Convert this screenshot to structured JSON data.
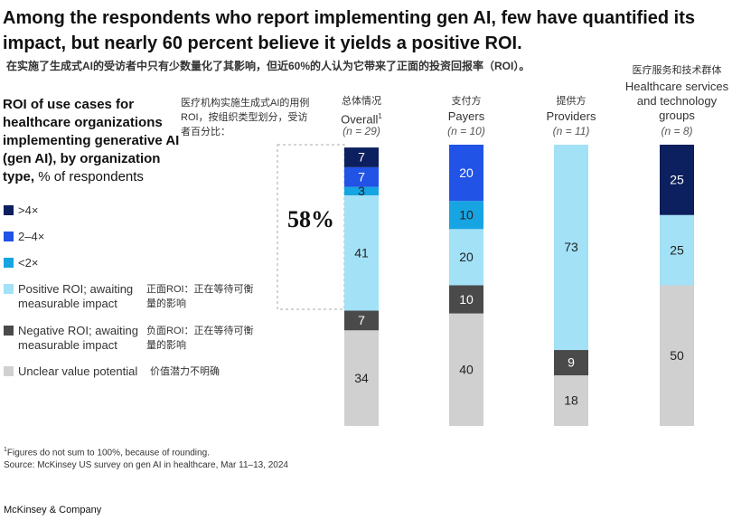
{
  "chart_data": {
    "type": "stacked-bar",
    "title": "Among the respondents who report implementing gen AI, few have quantified its impact, but nearly 60 percent believe it yields a positive ROI.",
    "subtitle_zh": "在实施了生成式AI的受访者中只有少数量化了其影响，但近60%的人认为它带来了正面的投资回报率（ROI）。",
    "panel_title": "ROI of use cases for healthcare organizations implementing generative AI (gen AI), by organization type,",
    "panel_unit": "% of respondents",
    "panel_title_zh": "医疗机构实施生成式AI的用例ROI，按组织类型划分，受访者百分比：",
    "categories": [
      "Overall",
      "Payers",
      "Providers",
      "Healthcare services and technology groups"
    ],
    "categories_zh": [
      "总体情况",
      "支付方",
      "提供方",
      "医疗服务和技术群体"
    ],
    "category_notes": [
      "(n = 29)",
      "(n = 10)",
      "(n = 11)",
      "(n = 8)"
    ],
    "footnote_marker": "1",
    "series": [
      {
        "name": "Unclear value potential",
        "name_zh": "价值潜力不明确",
        "color": "#d0d0d0",
        "values": [
          34,
          40,
          18,
          50
        ]
      },
      {
        "name": "Negative ROI; awaiting measurable impact",
        "name_zh": "负面ROI：正在等待可衡量的影响",
        "color": "#4a4a4a",
        "values": [
          7,
          10,
          9,
          null
        ]
      },
      {
        "name": "Positive ROI; awaiting measurable impact",
        "name_zh": "正面ROI：正在等待可衡量的影响",
        "color": "#a3e1f7",
        "values": [
          41,
          20,
          73,
          25
        ]
      },
      {
        "name": "<2×",
        "color": "#17a4e2",
        "values": [
          3,
          10,
          null,
          null
        ]
      },
      {
        "name": "2–4×",
        "color": "#2153e6",
        "values": [
          7,
          20,
          null,
          null
        ]
      },
      {
        "name": ">4×",
        "color": "#0c1f5e",
        "values": [
          7,
          null,
          null,
          25
        ]
      }
    ],
    "ylim": [
      0,
      100
    ],
    "annotation": "58%",
    "footnote": "Figures do not sum to 100%, because of rounding.",
    "source": "Source: McKinsey US survey on gen AI in healthcare, Mar 11–13, 2024",
    "brand": "McKinsey & Company"
  }
}
